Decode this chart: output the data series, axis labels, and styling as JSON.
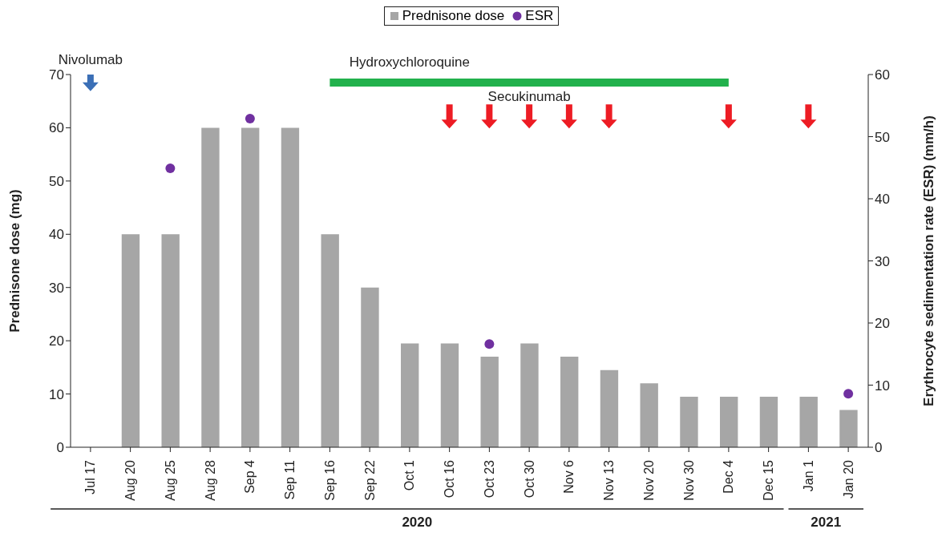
{
  "chart_data": {
    "type": "bar",
    "categories": [
      "Jul 17",
      "Aug 20",
      "Aug 25",
      "Aug 28",
      "Sep 4",
      "Sep 11",
      "Sep 16",
      "Sep 22",
      "Oct 1",
      "Oct 16",
      "Oct 23",
      "Oct 30",
      "Nov 6",
      "Nov 13",
      "Nov 20",
      "Nov 30",
      "Dec 4",
      "Dec 15",
      "Jan 1",
      "Jan 20"
    ],
    "ylabel": "Prednisone dose (mg)",
    "y2label": "Erythrocyte sedimentation rate (ESR) (mm/h)",
    "series": [
      {
        "name": "Prednisone dose",
        "color": "#a6a6a6",
        "values": [
          null,
          40,
          40,
          60,
          60,
          60,
          40,
          30,
          19.5,
          19.5,
          17,
          19.5,
          17,
          14.5,
          12,
          9.5,
          9.5,
          9.5,
          9.5,
          7
        ]
      },
      {
        "name": "ESR",
        "type": "scatter",
        "axis": "y2",
        "marker": "circle",
        "color": "#7030a0",
        "values": [
          null,
          null,
          44.9,
          null,
          52.9,
          null,
          null,
          null,
          null,
          null,
          16.6,
          null,
          null,
          null,
          null,
          null,
          null,
          null,
          null,
          8.6
        ]
      },
      {
        "type": "line",
        "color": "#22b14c",
        "values": [
          null,
          null,
          null,
          null,
          null,
          null,
          68.5,
          68.5,
          68.5,
          68.5,
          68.5,
          68.5,
          68.5,
          68.5,
          68.5,
          68.5,
          68.5,
          null,
          null,
          null
        ]
      },
      {
        "type": "scatter",
        "marker": "triangle",
        "color": "#3b6fb6",
        "values": [
          69,
          null,
          null,
          null,
          null,
          null,
          null,
          null,
          null,
          null,
          null,
          null,
          null,
          null,
          null,
          null,
          null,
          null,
          null,
          null
        ]
      },
      {
        "type": "scatter",
        "marker": "triangle",
        "color": "#ed1c24",
        "values": [
          null,
          null,
          null,
          null,
          null,
          null,
          null,
          null,
          null,
          62,
          62,
          62,
          62,
          62,
          null,
          null,
          62,
          null,
          62,
          null
        ]
      }
    ],
    "ylim": [
      0,
      70
    ],
    "yticks": [
      0,
      10,
      20,
      30,
      40,
      50,
      60,
      70
    ],
    "y2lim": [
      0,
      60
    ],
    "y2ticks": [
      0,
      10,
      20,
      30,
      40,
      50,
      60
    ],
    "annotations": [
      {
        "text": "Nivolumab",
        "x": "Jul 17",
        "y": 69
      },
      {
        "text": "Hydroxychloroquine",
        "x": "Oct 1",
        "y": 68.5
      },
      {
        "text": "Secukinumab",
        "x": "Oct 30",
        "y": 62
      },
      "2020",
      "2021"
    ],
    "grid": false,
    "legend": "top"
  }
}
